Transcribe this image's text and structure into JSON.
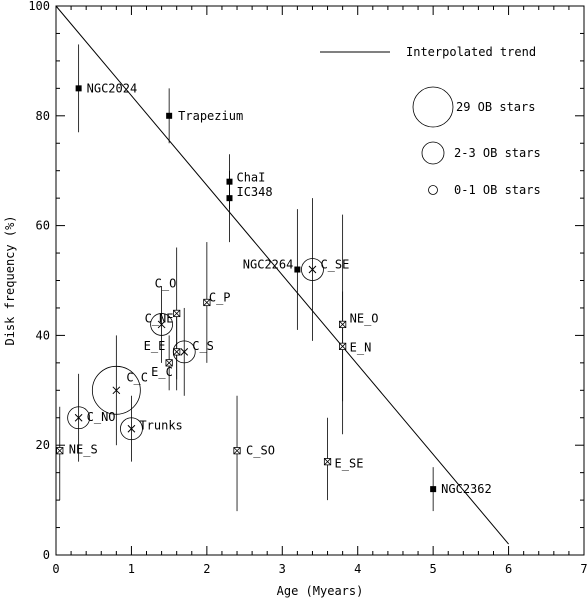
{
  "chart_data": {
    "type": "scatter",
    "xlabel": "Age (Myears)",
    "ylabel": "Disk frequency (%)",
    "xlim": [
      0,
      7
    ],
    "ylim": [
      0,
      100
    ],
    "x_ticks": [
      "0",
      "1",
      "2",
      "3",
      "4",
      "5",
      "6",
      "7"
    ],
    "y_ticks": [
      "0",
      "20",
      "40",
      "60",
      "80",
      "100"
    ],
    "grid": false,
    "legend_position": "top-right",
    "legend": {
      "trend_label": "Interpolated trend",
      "size_labels": [
        "29 OB stars",
        "2-3 OB stars",
        "0-1 OB stars"
      ]
    },
    "trend_line": {
      "x": [
        0,
        6
      ],
      "y": [
        100,
        2
      ]
    },
    "points": [
      {
        "label": "NGC2024",
        "x": 0.3,
        "y": 85,
        "err_low": 77,
        "err_high": 93,
        "marker": "filled-square"
      },
      {
        "label": "Trapezium",
        "x": 1.5,
        "y": 80,
        "err_low": 75,
        "err_high": 85,
        "marker": "filled-square"
      },
      {
        "label": "ChaI",
        "x": 2.3,
        "y": 68,
        "err_low": 63,
        "err_high": 73,
        "marker": "filled-square"
      },
      {
        "label": "IC348",
        "x": 2.3,
        "y": 65,
        "err_low": 57,
        "err_high": 70,
        "marker": "filled-square"
      },
      {
        "label": "NGC2264",
        "x": 3.2,
        "y": 52,
        "err_low": 41,
        "err_high": 63,
        "marker": "filled-square"
      },
      {
        "label": "C_SE",
        "x": 3.4,
        "y": 52,
        "err_low": 39,
        "err_high": 65,
        "marker": "cross",
        "ob_group": "medium"
      },
      {
        "label": "NE_O",
        "x": 3.8,
        "y": 42,
        "err_low": 22,
        "err_high": 62,
        "marker": "crossed-square"
      },
      {
        "label": "E_N",
        "x": 3.8,
        "y": 38,
        "err_low": 28,
        "err_high": 48,
        "marker": "crossed-square"
      },
      {
        "label": "C_O",
        "x": 1.6,
        "y": 44,
        "err_low": 32,
        "err_high": 56,
        "marker": "crossed-square"
      },
      {
        "label": "C_P",
        "x": 2.0,
        "y": 46,
        "err_low": 35,
        "err_high": 57,
        "marker": "crossed-square"
      },
      {
        "label": "C_NE",
        "x": 1.4,
        "y": 42,
        "err_low": 35,
        "err_high": 49,
        "marker": "cross",
        "ob_group": "medium"
      },
      {
        "label": "E_E",
        "x": 1.6,
        "y": 37,
        "err_low": 30,
        "err_high": 44,
        "marker": "crossed-square"
      },
      {
        "label": "C_S",
        "x": 1.7,
        "y": 37,
        "err_low": 29,
        "err_high": 45,
        "marker": "cross",
        "ob_group": "medium"
      },
      {
        "label": "E_C",
        "x": 1.5,
        "y": 35,
        "err_low": 30,
        "err_high": 40,
        "marker": "crossed-square"
      },
      {
        "label": "C_C",
        "x": 0.8,
        "y": 30,
        "err_low": 20,
        "err_high": 40,
        "marker": "cross",
        "ob_group": "large"
      },
      {
        "label": "C_NO",
        "x": 0.3,
        "y": 25,
        "err_low": 17,
        "err_high": 33,
        "marker": "cross",
        "ob_group": "medium"
      },
      {
        "label": "Trunks",
        "x": 1.0,
        "y": 23,
        "err_low": 17,
        "err_high": 29,
        "marker": "cross",
        "ob_group": "medium"
      },
      {
        "label": "NE_S",
        "x": 0.05,
        "y": 19,
        "err_low": 10,
        "err_high": 27,
        "marker": "crossed-square"
      },
      {
        "label": "C_SO",
        "x": 2.4,
        "y": 19,
        "err_low": 8,
        "err_high": 29,
        "marker": "crossed-square"
      },
      {
        "label": "E_SE",
        "x": 3.6,
        "y": 17,
        "err_low": 10,
        "err_high": 25,
        "marker": "crossed-square"
      },
      {
        "label": "NGC2362",
        "x": 5.0,
        "y": 12,
        "err_low": 8,
        "err_high": 16,
        "marker": "filled-square"
      }
    ]
  }
}
